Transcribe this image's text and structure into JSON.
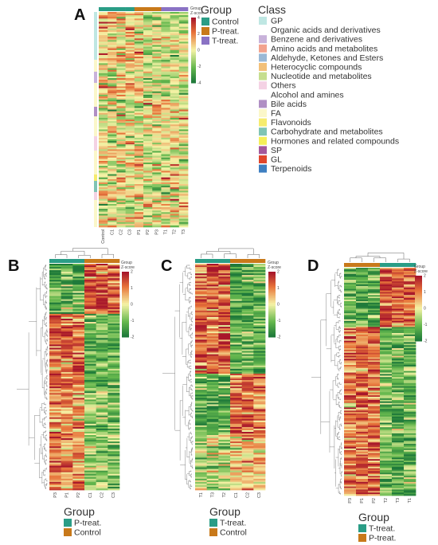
{
  "colors": {
    "control": "#2a9d86",
    "p_treat": "#c8791a",
    "t_treat": "#8a72c4",
    "heat_low": "#1f7a3a",
    "heat_mid": "#f6f3a6",
    "heat_high": "#a8172b"
  },
  "chart_data": [
    {
      "type": "heatmap",
      "panel": "A",
      "title": "",
      "columns": [
        "Control",
        "C1",
        "C2",
        "C3",
        "P1",
        "P2",
        "P3",
        "T1",
        "T2",
        "T3"
      ],
      "column_groups": [
        "Control",
        "Control",
        "Control",
        "Control",
        "P-treat.",
        "P-treat.",
        "P-treat.",
        "T-treat.",
        "T-treat.",
        "T-treat."
      ],
      "rows": 130,
      "scale_label": "Z-score",
      "scale_group_label": "Group",
      "scale_ticks": [
        "4",
        "2",
        "0",
        "-2",
        "-4"
      ],
      "zlim": [
        -4,
        4
      ],
      "group_legend": {
        "title": "Group",
        "entries": [
          {
            "name": "Control",
            "color": "#2a9d86"
          },
          {
            "name": "P-treat.",
            "color": "#c8791a"
          },
          {
            "name": "T-treat.",
            "color": "#8a72c4"
          }
        ]
      },
      "class_legend": {
        "title": "Class",
        "entries": [
          {
            "name": "GP",
            "color": "#bfe7e3"
          },
          {
            "name": "Organic acids and derivatives",
            "color": "#ffffff"
          },
          {
            "name": "Benzene and derivatives",
            "color": "#c8b2da"
          },
          {
            "name": "Amino acids and metabolites",
            "color": "#f2a38e"
          },
          {
            "name": "Aldehyde, Ketones and Esters",
            "color": "#9ab9d6"
          },
          {
            "name": "Heterocyclic compounds",
            "color": "#f2c079"
          },
          {
            "name": "Nucleotide and metabolites",
            "color": "#c6de8f"
          },
          {
            "name": "Others",
            "color": "#f4d2e4"
          },
          {
            "name": "Alcohol and amines",
            "color": "#ffffff"
          },
          {
            "name": "Bile acids",
            "color": "#b08fc4"
          },
          {
            "name": "FA",
            "color": "#fbf7c9"
          },
          {
            "name": "Flavonoids",
            "color": "#f6ec6e"
          },
          {
            "name": "Carbohydrate and metabolites",
            "color": "#7fc4b4"
          },
          {
            "name": "Hormones and related compounds",
            "color": "#f5ef58"
          },
          {
            "name": "SP",
            "color": "#a4589c"
          },
          {
            "name": "GL",
            "color": "#e0462c"
          },
          {
            "name": "Terpenoids",
            "color": "#3e7fc1"
          }
        ]
      }
    },
    {
      "type": "heatmap",
      "panel": "B",
      "title": "",
      "columns": [
        "P3",
        "P1",
        "P2",
        "C1",
        "C2",
        "C3"
      ],
      "column_groups": [
        "P-treat.",
        "P-treat.",
        "P-treat.",
        "Control",
        "Control",
        "Control"
      ],
      "rows": 140,
      "scale_label": "Z-score",
      "scale_group_label": "Group",
      "scale_ticks": [
        "2",
        "1",
        "0",
        "-1",
        "-2"
      ],
      "zlim": [
        -2,
        2
      ],
      "group_legend": {
        "title": "Group",
        "entries": [
          {
            "name": "P-treat.",
            "color": "#2a9d86"
          },
          {
            "name": "Control",
            "color": "#c8791a"
          }
        ]
      }
    },
    {
      "type": "heatmap",
      "panel": "C",
      "title": "",
      "columns": [
        "T1",
        "T3",
        "T2",
        "C1",
        "C2",
        "C3"
      ],
      "column_groups": [
        "T-treat.",
        "T-treat.",
        "T-treat.",
        "Control",
        "Control",
        "Control"
      ],
      "rows": 140,
      "scale_label": "Z-score",
      "scale_group_label": "Group",
      "scale_ticks": [
        "2",
        "1",
        "0",
        "-1",
        "-2"
      ],
      "zlim": [
        -2,
        2
      ],
      "group_legend": {
        "title": "Group",
        "entries": [
          {
            "name": "T-treat.",
            "color": "#2a9d86"
          },
          {
            "name": "Control",
            "color": "#c8791a"
          }
        ]
      }
    },
    {
      "type": "heatmap",
      "panel": "D",
      "title": "",
      "columns": [
        "P3",
        "P1",
        "P2",
        "T2",
        "T3",
        "T1"
      ],
      "column_groups": [
        "P-treat.",
        "P-treat.",
        "P-treat.",
        "T-treat.",
        "T-treat.",
        "T-treat."
      ],
      "rows": 150,
      "scale_label": "Z-score",
      "scale_group_label": "Group",
      "scale_ticks": [
        "2",
        "1",
        "0",
        "-1",
        "-2"
      ],
      "zlim": [
        -2,
        2
      ],
      "group_legend": {
        "title": "Group",
        "entries": [
          {
            "name": "T-treat.",
            "color": "#2a9d86"
          },
          {
            "name": "P-treat.",
            "color": "#c8791a"
          }
        ]
      }
    }
  ]
}
